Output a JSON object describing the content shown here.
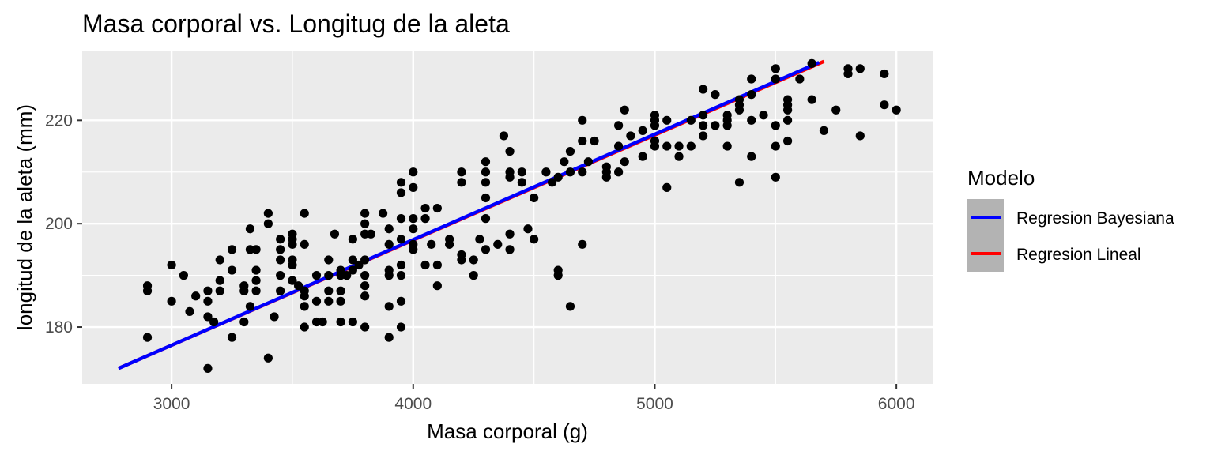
{
  "chart_data": {
    "type": "scatter",
    "title": "Masa corporal vs. Longitug de la aleta",
    "xlabel": "Masa corporal (g)",
    "ylabel": "longitud de la aleta (mm)",
    "xlim": [
      2630,
      6150
    ],
    "ylim": [
      169,
      233.5
    ],
    "xticks": [
      3000,
      4000,
      5000,
      6000
    ],
    "yticks": [
      180,
      200,
      220
    ],
    "grid": true,
    "legend": {
      "title": "Modelo",
      "position": "right",
      "entries": [
        {
          "label": "Regresion Bayesiana",
          "color": "#0000ff"
        },
        {
          "label": "Regresion Lineal",
          "color": "#ff0000"
        }
      ]
    },
    "lines": [
      {
        "name": "Regresion Lineal",
        "color": "#ff0000",
        "x": [
          2780,
          5700
        ],
        "y": [
          172.0,
          231.4
        ]
      },
      {
        "name": "Regresion Bayesiana",
        "color": "#0000ff",
        "x": [
          2780,
          5680
        ],
        "y": [
          172.0,
          231.2
        ]
      }
    ],
    "points": {
      "x": [
        2900,
        2900,
        2900,
        3000,
        3000,
        3050,
        3075,
        3100,
        3150,
        3150,
        3150,
        3150,
        3175,
        3200,
        3200,
        3200,
        3250,
        3250,
        3250,
        3300,
        3300,
        3300,
        3325,
        3325,
        3325,
        3350,
        3350,
        3350,
        3350,
        3400,
        3400,
        3400,
        3425,
        3450,
        3450,
        3450,
        3450,
        3450,
        3500,
        3500,
        3500,
        3500,
        3500,
        3500,
        3525,
        3550,
        3550,
        3550,
        3550,
        3550,
        3550,
        3600,
        3600,
        3600,
        3625,
        3650,
        3650,
        3650,
        3650,
        3675,
        3700,
        3700,
        3700,
        3700,
        3700,
        3725,
        3750,
        3750,
        3750,
        3750,
        3775,
        3800,
        3800,
        3800,
        3800,
        3800,
        3800,
        3800,
        3800,
        3825,
        3875,
        3900,
        3900,
        3900,
        3900,
        3900,
        3900,
        3950,
        3950,
        3950,
        3950,
        3950,
        3950,
        3950,
        3950,
        4000,
        4000,
        4000,
        4000,
        4000,
        4000,
        4050,
        4050,
        4050,
        4075,
        4100,
        4100,
        4100,
        4150,
        4150,
        4200,
        4200,
        4200,
        4200,
        4250,
        4250,
        4275,
        4300,
        4300,
        4300,
        4300,
        4300,
        4300,
        4350,
        4375,
        4400,
        4400,
        4400,
        4400,
        4400,
        4450,
        4450,
        4475,
        4500,
        4500,
        4550,
        4575,
        4600,
        4600,
        4600,
        4625,
        4650,
        4650,
        4650,
        4700,
        4700,
        4700,
        4700,
        4725,
        4750,
        4800,
        4800,
        4800,
        4850,
        4850,
        4850,
        4875,
        4875,
        4900,
        4950,
        4950,
        5000,
        5000,
        5000,
        5000,
        5000,
        5050,
        5050,
        5050,
        5100,
        5100,
        5150,
        5150,
        5200,
        5200,
        5200,
        5200,
        5250,
        5250,
        5300,
        5300,
        5300,
        5300,
        5350,
        5350,
        5350,
        5350,
        5400,
        5400,
        5400,
        5400,
        5450,
        5500,
        5500,
        5500,
        5500,
        5500,
        5550,
        5550,
        5550,
        5550,
        5550,
        5600,
        5650,
        5650,
        5700,
        5750,
        5800,
        5800,
        5850,
        5850,
        5950,
        5950,
        6000
      ],
      "y": [
        178,
        187,
        188,
        185,
        192,
        190,
        183,
        186,
        172,
        182,
        185,
        187,
        181,
        187,
        189,
        193,
        178,
        191,
        195,
        181,
        187,
        188,
        184,
        195,
        199,
        187,
        189,
        191,
        195,
        174,
        200,
        202,
        182,
        187,
        190,
        193,
        195,
        197,
        189,
        192,
        193,
        196,
        197,
        198,
        188,
        180,
        184,
        186,
        187,
        196,
        202,
        181,
        185,
        190,
        181,
        185,
        187,
        190,
        193,
        198,
        181,
        185,
        187,
        190,
        191,
        190,
        181,
        191,
        193,
        197,
        192,
        180,
        186,
        188,
        190,
        193,
        198,
        200,
        202,
        198,
        202,
        178,
        184,
        190,
        191,
        196,
        199,
        180,
        185,
        190,
        192,
        197,
        201,
        206,
        208,
        195,
        199,
        201,
        207,
        210,
        196,
        192,
        201,
        203,
        196,
        188,
        192,
        203,
        196,
        197,
        193,
        194,
        208,
        210,
        190,
        193,
        197,
        195,
        201,
        205,
        208,
        210,
        212,
        196,
        217,
        195,
        198,
        209,
        210,
        214,
        208,
        210,
        199,
        197,
        205,
        210,
        208,
        190,
        191,
        209,
        212,
        184,
        210,
        214,
        196,
        210,
        216,
        220,
        212,
        216,
        209,
        210,
        211,
        210,
        215,
        219,
        212,
        222,
        217,
        213,
        218,
        215,
        216,
        219,
        220,
        221,
        207,
        215,
        220,
        213,
        215,
        215,
        220,
        217,
        219,
        221,
        226,
        219,
        225,
        215,
        219,
        220,
        221,
        208,
        222,
        223,
        224,
        213,
        220,
        225,
        228,
        221,
        209,
        215,
        219,
        228,
        230,
        216,
        220,
        222,
        223,
        224,
        228,
        224,
        231,
        218,
        222,
        229,
        230,
        217,
        230,
        223,
        229,
        222
      ]
    }
  }
}
